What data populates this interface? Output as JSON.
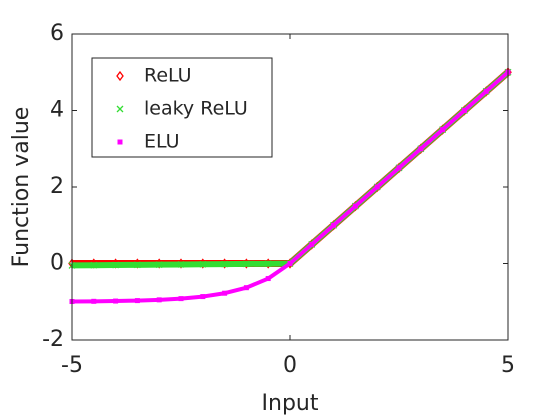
{
  "chart_data": {
    "type": "line",
    "xlabel": "Input",
    "ylabel": "Function value",
    "x": [
      -5,
      -4.5,
      -4,
      -3.5,
      -3,
      -2.5,
      -2,
      -1.5,
      -1,
      -0.5,
      0,
      0.5,
      1,
      1.5,
      2,
      2.5,
      3,
      3.5,
      4,
      4.5,
      5
    ],
    "series": [
      {
        "name": "ReLU",
        "color": "#ff0000",
        "marker": "diamond",
        "values": [
          0,
          0,
          0,
          0,
          0,
          0,
          0,
          0,
          0,
          0,
          0,
          0.5,
          1,
          1.5,
          2,
          2.5,
          3,
          3.5,
          4,
          4.5,
          5
        ]
      },
      {
        "name": "leaky ReLU",
        "color": "#33dd33",
        "marker": "x",
        "values": [
          -0.05,
          -0.045,
          -0.04,
          -0.035,
          -0.03,
          -0.025,
          -0.02,
          -0.015,
          -0.01,
          -0.005,
          0,
          0.5,
          1,
          1.5,
          2,
          2.5,
          3,
          3.5,
          4,
          4.5,
          5
        ]
      },
      {
        "name": "ELU",
        "color": "#ff00ff",
        "marker": "dot",
        "values": [
          -0.9933,
          -0.9889,
          -0.9817,
          -0.9698,
          -0.9502,
          -0.9179,
          -0.8647,
          -0.7769,
          -0.6321,
          -0.3935,
          0,
          0.5,
          1,
          1.5,
          2,
          2.5,
          3,
          3.5,
          4,
          4.5,
          5
        ]
      }
    ],
    "xlim": [
      -5,
      5
    ],
    "xticks": [
      -5,
      0,
      5
    ],
    "ylim": [
      -2,
      6
    ],
    "yticks": [
      -2,
      0,
      2,
      4,
      6
    ],
    "grid": false,
    "legend": "upper left"
  }
}
